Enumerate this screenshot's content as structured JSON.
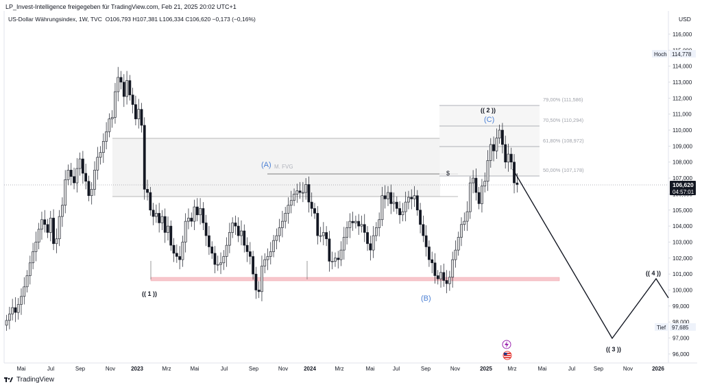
{
  "header": {
    "share_line": "LP_Invest-Intelligence freigegeben für TradingView.com, Feb 21, 2025 20:02 UTC+1",
    "symbol_line": "US-Dollar Währungsindex, 1W, TVC",
    "ohlc": "O106,793  H107,381  L106,334  C106,620  −0,173 (−0,16%)"
  },
  "currency_label": "USD",
  "price_axis": {
    "ticks": [
      "116,000",
      "115,000",
      "114,000",
      "113,000",
      "112,000",
      "111,000",
      "110,000",
      "109,000",
      "108,000",
      "107,000",
      "106,000",
      "105,000",
      "104,000",
      "103,000",
      "102,000",
      "101,000",
      "100,000",
      "99,000",
      "98,000",
      "97,000",
      "96,000"
    ],
    "high_label": "Hoch",
    "high_value": "114,778",
    "low_label": "Tief",
    "low_value": "97,685",
    "last_price": "106,620",
    "countdown": "04:57:01"
  },
  "time_axis": [
    "Mai",
    "Jul",
    "Sep",
    "Nov",
    "2023",
    "Mrz",
    "Mai",
    "Jul",
    "Sep",
    "Nov",
    "2024",
    "Mrz",
    "Mai",
    "Jul",
    "Sep",
    "Nov",
    "2025",
    "Mrz",
    "Mai",
    "Jul",
    "Sep",
    "Nov",
    "2026"
  ],
  "annotations": {
    "wave_1": "(( 1 ))",
    "wave_2": "(( 2 ))",
    "wave_3": "(( 3 ))",
    "wave_4": "(( 4 ))",
    "wave_A": "(A)",
    "wave_B": "(B)",
    "wave_C": "(C)",
    "fvg_label": "M. FVG",
    "dollar_marker": "$"
  },
  "fibonacci": [
    {
      "label": "79,00% (111,586)"
    },
    {
      "label": "70,50% (110,294)"
    },
    {
      "label": "61,80% (108,972)"
    },
    {
      "label": "50,00% (107,178)"
    }
  ],
  "footer": {
    "brand": "TradingView"
  },
  "colors": {
    "up": "#d9d9d9",
    "down": "#131722",
    "wave_blue": "#4a7fd4",
    "zone_red": "#f7c7cc"
  },
  "chart_data": {
    "type": "candlestick",
    "title": "US-Dollar Währungsindex, 1W, TVC",
    "xlabel": "",
    "ylabel": "USD",
    "ylim": [
      95.6,
      117.0
    ],
    "x_range": [
      "2022-03",
      "2026-01"
    ],
    "current_price": 106.62,
    "series": [
      {
        "name": "US-Dollar Währungsindex",
        "close": [
          98.1,
          98.5,
          98.9,
          98.6,
          99.1,
          99.6,
          100.2,
          100.9,
          101.7,
          102.4,
          103.0,
          103.8,
          104.4,
          104.1,
          103.6,
          104.5,
          102.9,
          103.2,
          104.6,
          105.3,
          106.9,
          107.5,
          107.1,
          106.7,
          107.6,
          108.2,
          107.3,
          106.8,
          105.9,
          106.3,
          107.5,
          108.3,
          108.6,
          109.3,
          109.9,
          110.7,
          110.8,
          112.4,
          113.3,
          113.0,
          112.1,
          113.1,
          112.2,
          111.6,
          110.7,
          111.3,
          110.3,
          106.3,
          106.1,
          105.0,
          104.6,
          104.8,
          104.2,
          104.6,
          103.6,
          104.0,
          102.8,
          102.3,
          102.1,
          101.9,
          103.0,
          104.3,
          104.5,
          104.3,
          105.2,
          104.7,
          105.1,
          104.2,
          103.4,
          102.7,
          102.3,
          101.6,
          101.6,
          101.7,
          102.1,
          102.8,
          103.6,
          104.2,
          104.0,
          103.4,
          103.7,
          102.8,
          102.4,
          102.1,
          101.0,
          100.0,
          99.9,
          101.5,
          101.9,
          102.1,
          102.4,
          103.1,
          103.4,
          103.9,
          104.3,
          104.8,
          105.3,
          105.6,
          106.0,
          106.2,
          106.1,
          106.1,
          106.6,
          105.5,
          105.1,
          104.8,
          103.4,
          103.4,
          103.6,
          103.2,
          101.8,
          101.8,
          102.0,
          101.9,
          102.5,
          103.3,
          103.9,
          104.3,
          104.2,
          104.3,
          104.0,
          104.1,
          103.6,
          102.9,
          102.5,
          103.4,
          103.9,
          104.4,
          105.9,
          105.7,
          106.1,
          105.4,
          105.5,
          105.1,
          104.7,
          104.9,
          105.5,
          105.8,
          105.7,
          105.9,
          105.0,
          104.1,
          103.4,
          102.7,
          101.9,
          101.7,
          100.9,
          100.7,
          101.1,
          100.6,
          100.4,
          100.8,
          101.9,
          102.5,
          103.3,
          104.1,
          104.3,
          104.9,
          106.7,
          107.0,
          106.1,
          105.4,
          106.5,
          106.8,
          108.1,
          109.1,
          108.7,
          109.5,
          110.0,
          109.1,
          108.0,
          108.5,
          108.0,
          106.7,
          106.6
        ]
      }
    ],
    "fib_levels": [
      {
        "ratio": "79,00%",
        "value": 111.586
      },
      {
        "ratio": "70,50%",
        "value": 110.294
      },
      {
        "ratio": "61,80%",
        "value": 108.972
      },
      {
        "ratio": "50,00%",
        "value": 107.178
      }
    ],
    "projection": [
      {
        "label": "(( 3 ))",
        "value": 97.0
      },
      {
        "label": "(( 4 ))",
        "value": 100.7
      }
    ]
  }
}
